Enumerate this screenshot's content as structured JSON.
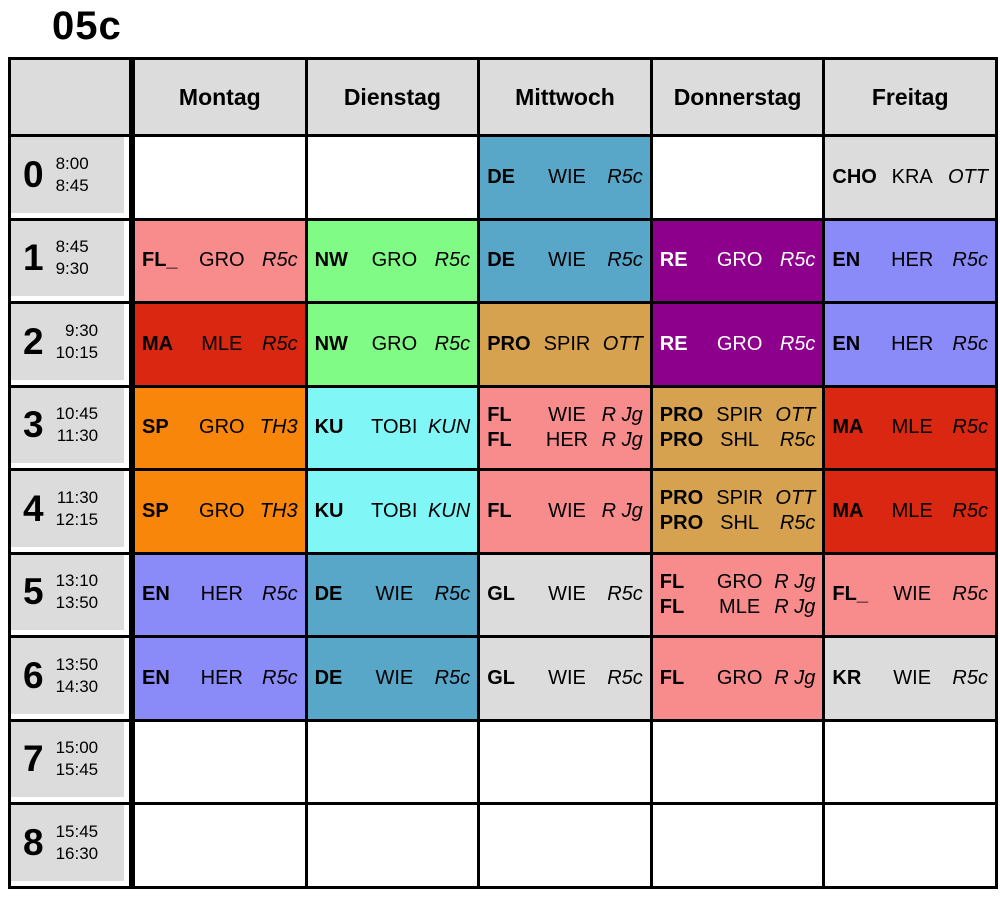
{
  "title": "05c",
  "palette": {
    "gray": "#dcdcdc",
    "blue": "#58a6c8",
    "green": "#80fb85",
    "purple": "#8c008c",
    "periwinkle": "#8a8af8",
    "red": "#d92711",
    "tan": "#d6a250",
    "orange": "#f8860b",
    "cyan": "#80f6f6",
    "pink": "#f88c8c",
    "border": "#000000",
    "white_text": "#ffffff",
    "black_text": "#000000"
  },
  "days": [
    "Montag",
    "Dienstag",
    "Mittwoch",
    "Donnerstag",
    "Freitag"
  ],
  "periods": [
    {
      "num": "0",
      "start": "8:00",
      "end": "8:45"
    },
    {
      "num": "1",
      "start": "8:45",
      "end": "9:30"
    },
    {
      "num": "2",
      "start": "9:30",
      "end": "10:15"
    },
    {
      "num": "3",
      "start": "10:45",
      "end": "11:30"
    },
    {
      "num": "4",
      "start": "11:30",
      "end": "12:15"
    },
    {
      "num": "5",
      "start": "13:10",
      "end": "13:50"
    },
    {
      "num": "6",
      "start": "13:50",
      "end": "14:30"
    },
    {
      "num": "7",
      "start": "15:00",
      "end": "15:45"
    },
    {
      "num": "8",
      "start": "15:45",
      "end": "16:30"
    }
  ],
  "rows": [
    [
      null,
      null,
      {
        "color": "blue",
        "lessons": [
          {
            "s": "DE",
            "t": "WIE",
            "r": "R5c"
          }
        ]
      },
      null,
      {
        "color": "gray",
        "lessons": [
          {
            "s": "CHO",
            "t": "KRA",
            "r": "OTT"
          }
        ]
      }
    ],
    [
      {
        "color": "pink",
        "lessons": [
          {
            "s": "FL_",
            "t": "GRO",
            "r": "R5c"
          }
        ]
      },
      {
        "color": "green",
        "lessons": [
          {
            "s": "NW",
            "t": "GRO",
            "r": "R5c"
          }
        ]
      },
      {
        "color": "blue",
        "lessons": [
          {
            "s": "DE",
            "t": "WIE",
            "r": "R5c"
          }
        ]
      },
      {
        "color": "purple",
        "fg": "white",
        "lessons": [
          {
            "s": "RE",
            "t": "GRO",
            "r": "R5c"
          }
        ]
      },
      {
        "color": "periwinkle",
        "lessons": [
          {
            "s": "EN",
            "t": "HER",
            "r": "R5c"
          }
        ]
      }
    ],
    [
      {
        "color": "red",
        "lessons": [
          {
            "s": "MA",
            "t": "MLE",
            "r": "R5c"
          }
        ]
      },
      {
        "color": "green",
        "lessons": [
          {
            "s": "NW",
            "t": "GRO",
            "r": "R5c"
          }
        ]
      },
      {
        "color": "tan",
        "lessons": [
          {
            "s": "PRO",
            "t": "SPIR",
            "r": "OTT"
          }
        ]
      },
      {
        "color": "purple",
        "fg": "white",
        "lessons": [
          {
            "s": "RE",
            "t": "GRO",
            "r": "R5c"
          }
        ]
      },
      {
        "color": "periwinkle",
        "lessons": [
          {
            "s": "EN",
            "t": "HER",
            "r": "R5c"
          }
        ]
      }
    ],
    [
      {
        "color": "orange",
        "lessons": [
          {
            "s": "SP",
            "t": "GRO",
            "r": "TH3"
          }
        ]
      },
      {
        "color": "cyan",
        "lessons": [
          {
            "s": "KU",
            "t": "TOBI",
            "r": "KUN"
          }
        ]
      },
      {
        "color": "pink",
        "lessons": [
          {
            "s": "FL",
            "t": "WIE",
            "r": "R Jg"
          },
          {
            "s": "FL",
            "t": "HER",
            "r": "R Jg"
          }
        ]
      },
      {
        "color": "tan",
        "lessons": [
          {
            "s": "PRO",
            "t": "SPIR",
            "r": "OTT"
          },
          {
            "s": "PRO",
            "t": "SHL",
            "r": "R5c"
          }
        ]
      },
      {
        "color": "red",
        "lessons": [
          {
            "s": "MA",
            "t": "MLE",
            "r": "R5c"
          }
        ]
      }
    ],
    [
      {
        "color": "orange",
        "lessons": [
          {
            "s": "SP",
            "t": "GRO",
            "r": "TH3"
          }
        ]
      },
      {
        "color": "cyan",
        "lessons": [
          {
            "s": "KU",
            "t": "TOBI",
            "r": "KUN"
          }
        ]
      },
      {
        "color": "pink",
        "lessons": [
          {
            "s": "FL",
            "t": "WIE",
            "r": "R Jg"
          }
        ]
      },
      {
        "color": "tan",
        "lessons": [
          {
            "s": "PRO",
            "t": "SPIR",
            "r": "OTT"
          },
          {
            "s": "PRO",
            "t": "SHL",
            "r": "R5c"
          }
        ]
      },
      {
        "color": "red",
        "lessons": [
          {
            "s": "MA",
            "t": "MLE",
            "r": "R5c"
          }
        ]
      }
    ],
    [
      {
        "color": "periwinkle",
        "lessons": [
          {
            "s": "EN",
            "t": "HER",
            "r": "R5c"
          }
        ]
      },
      {
        "color": "blue",
        "lessons": [
          {
            "s": "DE",
            "t": "WIE",
            "r": "R5c"
          }
        ]
      },
      {
        "color": "gray",
        "lessons": [
          {
            "s": "GL",
            "t": "WIE",
            "r": "R5c"
          }
        ]
      },
      {
        "color": "pink",
        "lessons": [
          {
            "s": "FL",
            "t": "GRO",
            "r": "R Jg"
          },
          {
            "s": "FL",
            "t": "MLE",
            "r": "R Jg"
          }
        ]
      },
      {
        "color": "pink",
        "lessons": [
          {
            "s": "FL_",
            "t": "WIE",
            "r": "R5c"
          }
        ]
      }
    ],
    [
      {
        "color": "periwinkle",
        "lessons": [
          {
            "s": "EN",
            "t": "HER",
            "r": "R5c"
          }
        ]
      },
      {
        "color": "blue",
        "lessons": [
          {
            "s": "DE",
            "t": "WIE",
            "r": "R5c"
          }
        ]
      },
      {
        "color": "gray",
        "lessons": [
          {
            "s": "GL",
            "t": "WIE",
            "r": "R5c"
          }
        ]
      },
      {
        "color": "pink",
        "lessons": [
          {
            "s": "FL",
            "t": "GRO",
            "r": "R Jg"
          }
        ]
      },
      {
        "color": "gray",
        "lessons": [
          {
            "s": "KR",
            "t": "WIE",
            "r": "R5c"
          }
        ]
      }
    ],
    [
      null,
      null,
      null,
      null,
      null
    ],
    [
      null,
      null,
      null,
      null,
      null
    ]
  ]
}
